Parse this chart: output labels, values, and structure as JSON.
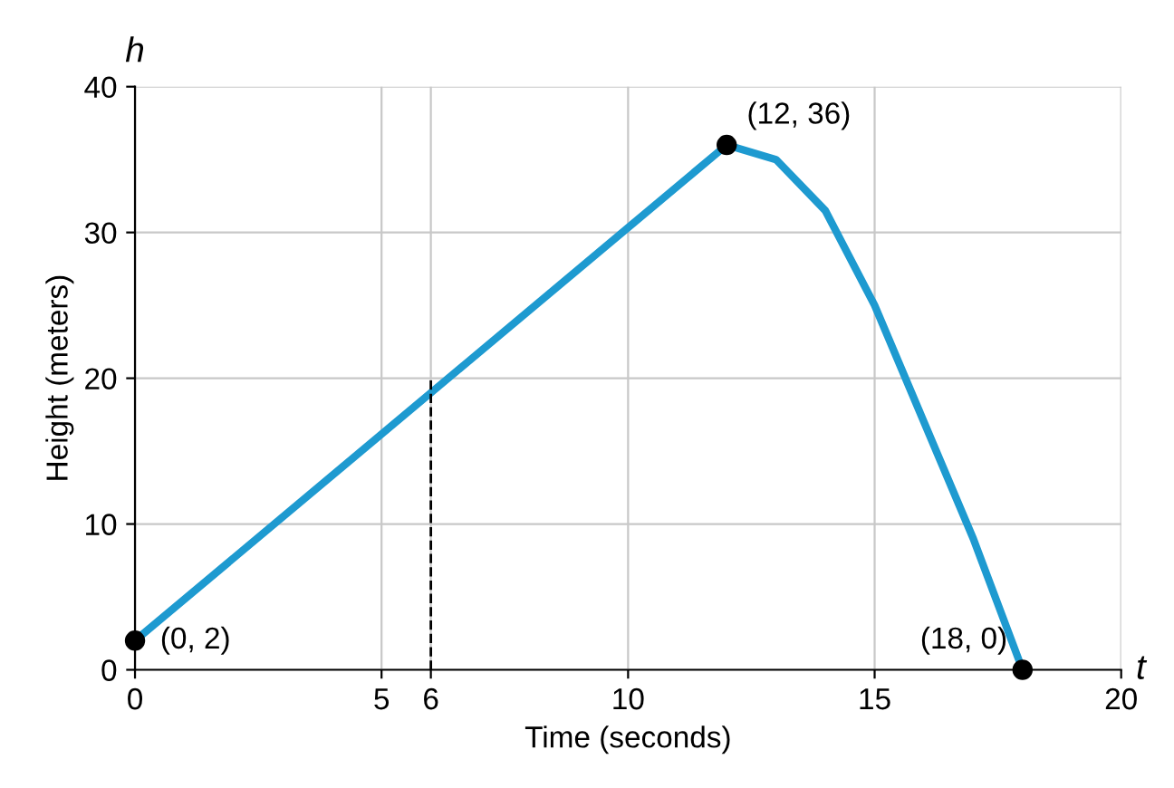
{
  "chart_data": {
    "type": "line",
    "xlabel": "Time (seconds)",
    "ylabel": "Height (meters)",
    "xlim": [
      0,
      20
    ],
    "ylim": [
      0,
      40
    ],
    "xticks": [
      0,
      5,
      6,
      10,
      15,
      20
    ],
    "yticks": [
      0,
      10,
      20,
      30,
      40
    ],
    "grid": true,
    "legend": false,
    "series": [
      {
        "color": "#1e9ad0",
        "x": [
          0,
          12,
          13,
          14,
          15,
          16,
          17,
          18
        ],
        "values": [
          2,
          36,
          35,
          31.5,
          25,
          17,
          9,
          0
        ]
      },
      {
        "color": "#000000",
        "line_style": "dashed",
        "x": [
          6,
          6
        ],
        "values": [
          0,
          20
        ]
      },
      {
        "type": "scatter",
        "color": "#000000",
        "marker": "circle",
        "x": [
          0,
          12,
          18
        ],
        "values": [
          2,
          36,
          0
        ]
      }
    ],
    "annotations": [
      {
        "text": "(0, 2)",
        "x": 0,
        "y": 2
      },
      {
        "text": "(12, 36)",
        "x": 12,
        "y": 36
      },
      {
        "text": "(18, 0)",
        "x": 18,
        "y": 0
      },
      "h",
      "t"
    ]
  }
}
